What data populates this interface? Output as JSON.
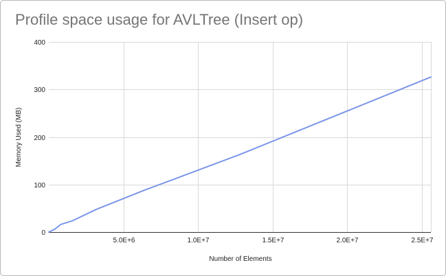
{
  "chart_data": {
    "type": "line",
    "title": "Profile space usage for AVLTree (Insert op)",
    "xlabel": "Number of Elements",
    "ylabel": "Memory Used (MB)",
    "xlim": [
      0,
      25600000
    ],
    "ylim": [
      0,
      400
    ],
    "x_ticks": [
      5000000,
      10000000,
      15000000,
      20000000,
      25000000
    ],
    "x_tick_labels": [
      "5.0E+6",
      "1.0E+7",
      "1.5E+7",
      "2.0E+7",
      "2.5E+7"
    ],
    "y_ticks": [
      0,
      100,
      200,
      300,
      400
    ],
    "y_tick_labels": [
      "0",
      "100",
      "200",
      "300",
      "400"
    ],
    "grid": true,
    "legend": "none",
    "series": [
      {
        "color": "#7b96e8",
        "x": [
          0,
          400000,
          800000,
          1600000,
          3200000,
          6400000,
          12800000,
          25600000
        ],
        "y": [
          0,
          6,
          16,
          24,
          48,
          88,
          163,
          326
        ]
      }
    ]
  }
}
